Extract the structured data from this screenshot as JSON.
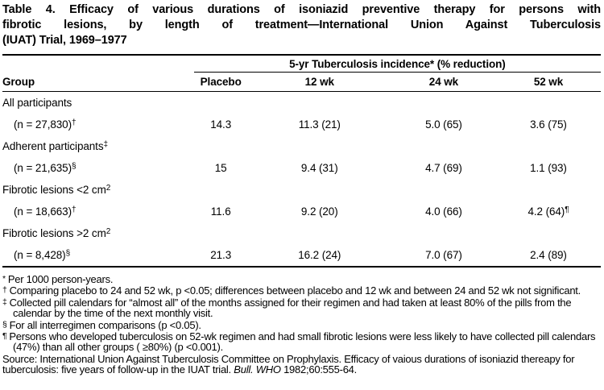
{
  "title_lines": [
    "Table 4. Efficacy of various durations of isoniazid preventive therapy for persons with",
    "fibrotic lesions, by length of treatment—International Union Against Tuberculosis",
    "(IUAT) Trial, 1969–1977"
  ],
  "table": {
    "span_header": "5-yr Tuberculosis incidence* (% reduction)",
    "group_col_header": "Group",
    "col_headers": [
      "Placebo",
      "12 wk",
      "24 wk",
      "52 wk"
    ],
    "rows": [
      {
        "label": "All participants",
        "sup": "",
        "values": [
          "",
          "",
          "",
          ""
        ]
      },
      {
        "label": "(n = 27,830)",
        "sup": "†",
        "values": [
          "14.3",
          "11.3 (21)",
          "5.0 (65)",
          "3.6 (75)"
        ]
      },
      {
        "label": "Adherent participants",
        "sup": "‡",
        "values": [
          "",
          "",
          "",
          ""
        ]
      },
      {
        "label": "(n = 21,635)",
        "sup": "§",
        "values": [
          "15",
          "9.4 (31)",
          "4.7 (69)",
          "1.1 (93)"
        ]
      },
      {
        "label": "Fibrotic lesions <2 cm",
        "sup": "2",
        "values": [
          "",
          "",
          "",
          ""
        ]
      },
      {
        "label": "(n = 18,663)",
        "sup": "†",
        "values": [
          "11.6",
          "9.2 (20)",
          "4.0 (66)",
          "4.2 (64)"
        ],
        "value_sup": "¶"
      },
      {
        "label": "Fibrotic lesions >2 cm",
        "sup": "2",
        "values": [
          "",
          "",
          "",
          ""
        ]
      },
      {
        "label": "(n = 8,428)",
        "sup": "§",
        "values": [
          "21.3",
          "16.2 (24)",
          "7.0 (67)",
          "2.4 (89)"
        ]
      }
    ]
  },
  "footnotes": [
    {
      "symbol": "*",
      "text": "Per 1000 person-years."
    },
    {
      "symbol": "†",
      "text": "Comparing placebo to 24 and 52 wk, p <0.05; differences between placebo and 12 wk and between 24 and 52 wk not significant."
    },
    {
      "symbol": "‡",
      "text": "Collected pill calendars for “almost all” of the months assigned for their regimen and had taken at least 80% of the pills from the calendar by the time of the next monthly visit."
    },
    {
      "symbol": "§",
      "text": "For all interregimen comparisons (p <0.05)."
    },
    {
      "symbol": "¶",
      "text": "Persons who developed tuberculosis on 52-wk regimen and had small fibrotic lesions were less likely to have collected pill calendars (47%) than all other groups ( ≥80%) (p <0.001)."
    }
  ],
  "source": {
    "prefix": "Source: International Union Against Tuberculosis Committee on Prophylaxis. Efficacy of vaious durations of isoniazid thereapy for tuberculosis: five years of follow-up in the IUAT trial. ",
    "italic": "Bull. WHO",
    "suffix": " 1982;60:555-64."
  }
}
